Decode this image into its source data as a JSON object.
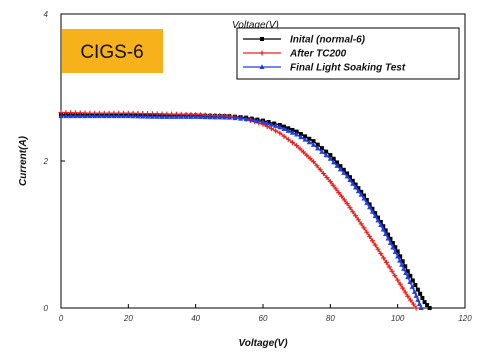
{
  "badge": {
    "label": "CIGS-6",
    "color": "#f7b21b"
  },
  "ghost_title": "Voltage(V)",
  "chart_data": {
    "type": "line",
    "xlabel": "Voltage(V)",
    "ylabel": "Current(A)",
    "xlim": [
      0,
      120
    ],
    "ylim": [
      0,
      4
    ],
    "x_ticks": [
      0,
      20,
      40,
      60,
      80,
      100,
      120
    ],
    "y_ticks": [
      0,
      2,
      4
    ],
    "grid": false,
    "legend_position": "top-right",
    "series": [
      {
        "name": "Inital (normal-6)",
        "color": "#000000",
        "marker": "square",
        "x": [
          0,
          10,
          20,
          30,
          40,
          50,
          55,
          60,
          65,
          70,
          75,
          80,
          85,
          90,
          95,
          100,
          103,
          106,
          108,
          109.5
        ],
        "y": [
          2.63,
          2.63,
          2.63,
          2.62,
          2.62,
          2.61,
          2.59,
          2.55,
          2.49,
          2.4,
          2.27,
          2.08,
          1.83,
          1.53,
          1.17,
          0.77,
          0.5,
          0.25,
          0.08,
          0
        ]
      },
      {
        "name": "After TC200",
        "color": "#e8241f",
        "marker": "plus",
        "x": [
          0,
          10,
          20,
          30,
          40,
          50,
          55,
          60,
          65,
          70,
          75,
          80,
          85,
          90,
          95,
          100,
          103,
          105.5
        ],
        "y": [
          2.66,
          2.65,
          2.65,
          2.64,
          2.63,
          2.61,
          2.57,
          2.5,
          2.38,
          2.21,
          1.99,
          1.72,
          1.42,
          1.09,
          0.74,
          0.38,
          0.16,
          0
        ]
      },
      {
        "name": "Final Light Soaking Test",
        "color": "#1f3fe0",
        "marker": "triangle",
        "x": [
          0,
          10,
          20,
          30,
          40,
          50,
          55,
          60,
          65,
          70,
          75,
          80,
          85,
          90,
          95,
          100,
          103,
          105,
          107
        ],
        "y": [
          2.61,
          2.61,
          2.61,
          2.6,
          2.6,
          2.59,
          2.57,
          2.53,
          2.46,
          2.36,
          2.22,
          2.03,
          1.79,
          1.49,
          1.13,
          0.7,
          0.42,
          0.22,
          0
        ]
      }
    ]
  }
}
